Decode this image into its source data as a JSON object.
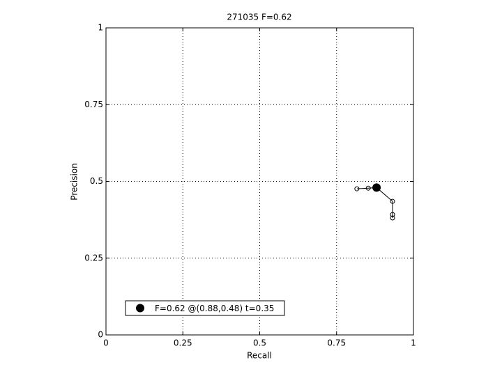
{
  "chart_data": {
    "type": "line",
    "title": "271035 F=0.62",
    "x_label": "Recall",
    "y_label": "Precision",
    "series": [
      {
        "x": [
          0.816,
          0.853,
          0.88,
          0.932,
          0.932,
          0.932
        ],
        "values": [
          0.476,
          0.478,
          0.48,
          0.435,
          0.392,
          0.381
        ],
        "color": "#000000"
      }
    ],
    "best": {
      "name": "F=0.62 @(0.88,0.48) t=0.35",
      "x": 0.88,
      "y": 0.48,
      "color": "#000000"
    },
    "xlim": [
      0,
      1
    ],
    "ylim": [
      0,
      1
    ],
    "xticks": [
      0,
      0.25,
      0.5,
      0.75,
      1
    ],
    "yticks": [
      0,
      0.25,
      0.5,
      0.75,
      1
    ],
    "grid": true,
    "legend_position": "lower left"
  }
}
